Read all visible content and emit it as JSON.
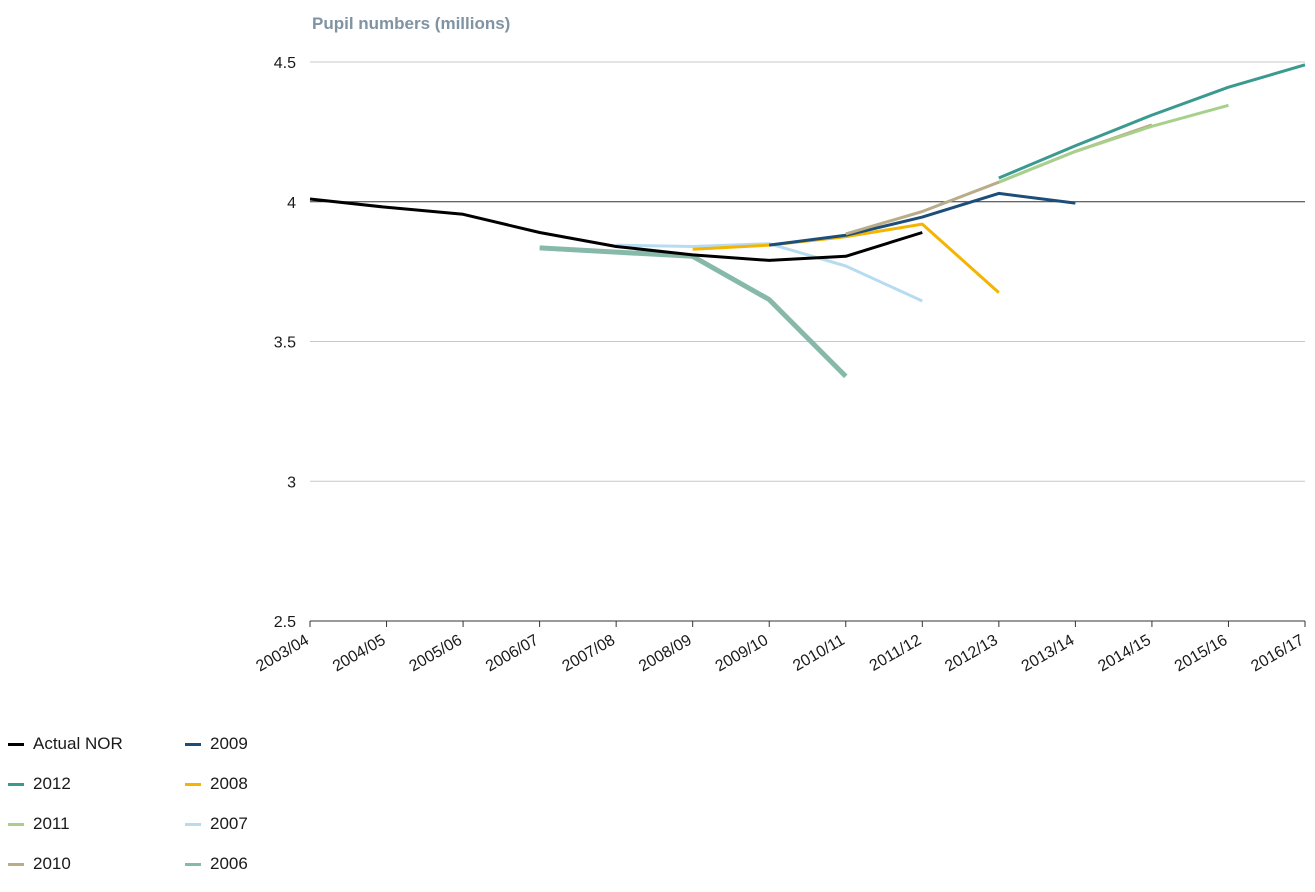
{
  "chart_data": {
    "type": "line",
    "ylabel": "Pupil numbers (millions)",
    "ylim": [
      2.5,
      4.5
    ],
    "yticks": [
      "2.5",
      "3",
      "3.5",
      "4",
      "4.5"
    ],
    "categories": [
      "2003/04",
      "2004/05",
      "2005/06",
      "2006/07",
      "2007/08",
      "2008/09",
      "2009/10",
      "2010/11",
      "2011/12",
      "2012/13",
      "2013/14",
      "2014/15",
      "2015/16",
      "2016/17"
    ],
    "grid": "horizontal",
    "legend_position": "bottom-left",
    "series": [
      {
        "name": "Actual NOR",
        "color": "#000000",
        "values": [
          4.01,
          3.98,
          3.955,
          3.89,
          3.84,
          3.81,
          3.79,
          3.805,
          3.89,
          null,
          null,
          null,
          null,
          null
        ]
      },
      {
        "name": "2012",
        "color": "#3a9a8f",
        "values": [
          null,
          null,
          null,
          null,
          null,
          null,
          null,
          null,
          null,
          4.085,
          4.2,
          4.31,
          4.41,
          4.49
        ]
      },
      {
        "name": "2011",
        "color": "#a8d08d",
        "values": [
          null,
          null,
          null,
          null,
          null,
          null,
          null,
          null,
          null,
          4.07,
          4.18,
          4.27,
          4.345,
          null
        ]
      },
      {
        "name": "2010",
        "color": "#b8ad88",
        "values": [
          null,
          null,
          null,
          null,
          null,
          null,
          null,
          3.885,
          3.965,
          4.07,
          4.18,
          4.275,
          null,
          null
        ]
      },
      {
        "name": "2009",
        "color": "#1d4e79",
        "values": [
          null,
          null,
          null,
          null,
          null,
          null,
          3.845,
          3.88,
          3.945,
          4.03,
          3.995,
          null,
          null,
          null
        ]
      },
      {
        "name": "2008",
        "color": "#f4b400",
        "values": [
          null,
          null,
          null,
          null,
          null,
          3.83,
          3.845,
          3.875,
          3.92,
          3.675,
          null,
          null,
          null,
          null
        ]
      },
      {
        "name": "2007",
        "color": "#b7dcf2",
        "values": [
          null,
          null,
          null,
          null,
          3.845,
          3.84,
          3.85,
          3.77,
          3.645,
          null,
          null,
          null,
          null,
          null
        ]
      },
      {
        "name": "2006",
        "color": "#87b9aa",
        "values": [
          null,
          null,
          null,
          3.835,
          3.82,
          3.805,
          3.65,
          3.375,
          null,
          null,
          null,
          null,
          null,
          null
        ]
      }
    ]
  },
  "legend": {
    "items": [
      {
        "label": "Actual NOR",
        "color": "#000000"
      },
      {
        "label": "2012",
        "color": "#3a9a8f"
      },
      {
        "label": "2011",
        "color": "#a8d08d"
      },
      {
        "label": "2010",
        "color": "#b8ad88"
      },
      {
        "label": "2009",
        "color": "#1d4e79"
      },
      {
        "label": "2008",
        "color": "#f4b400"
      },
      {
        "label": "2007",
        "color": "#b7dcf2"
      },
      {
        "label": "2006",
        "color": "#87b9aa"
      }
    ]
  }
}
